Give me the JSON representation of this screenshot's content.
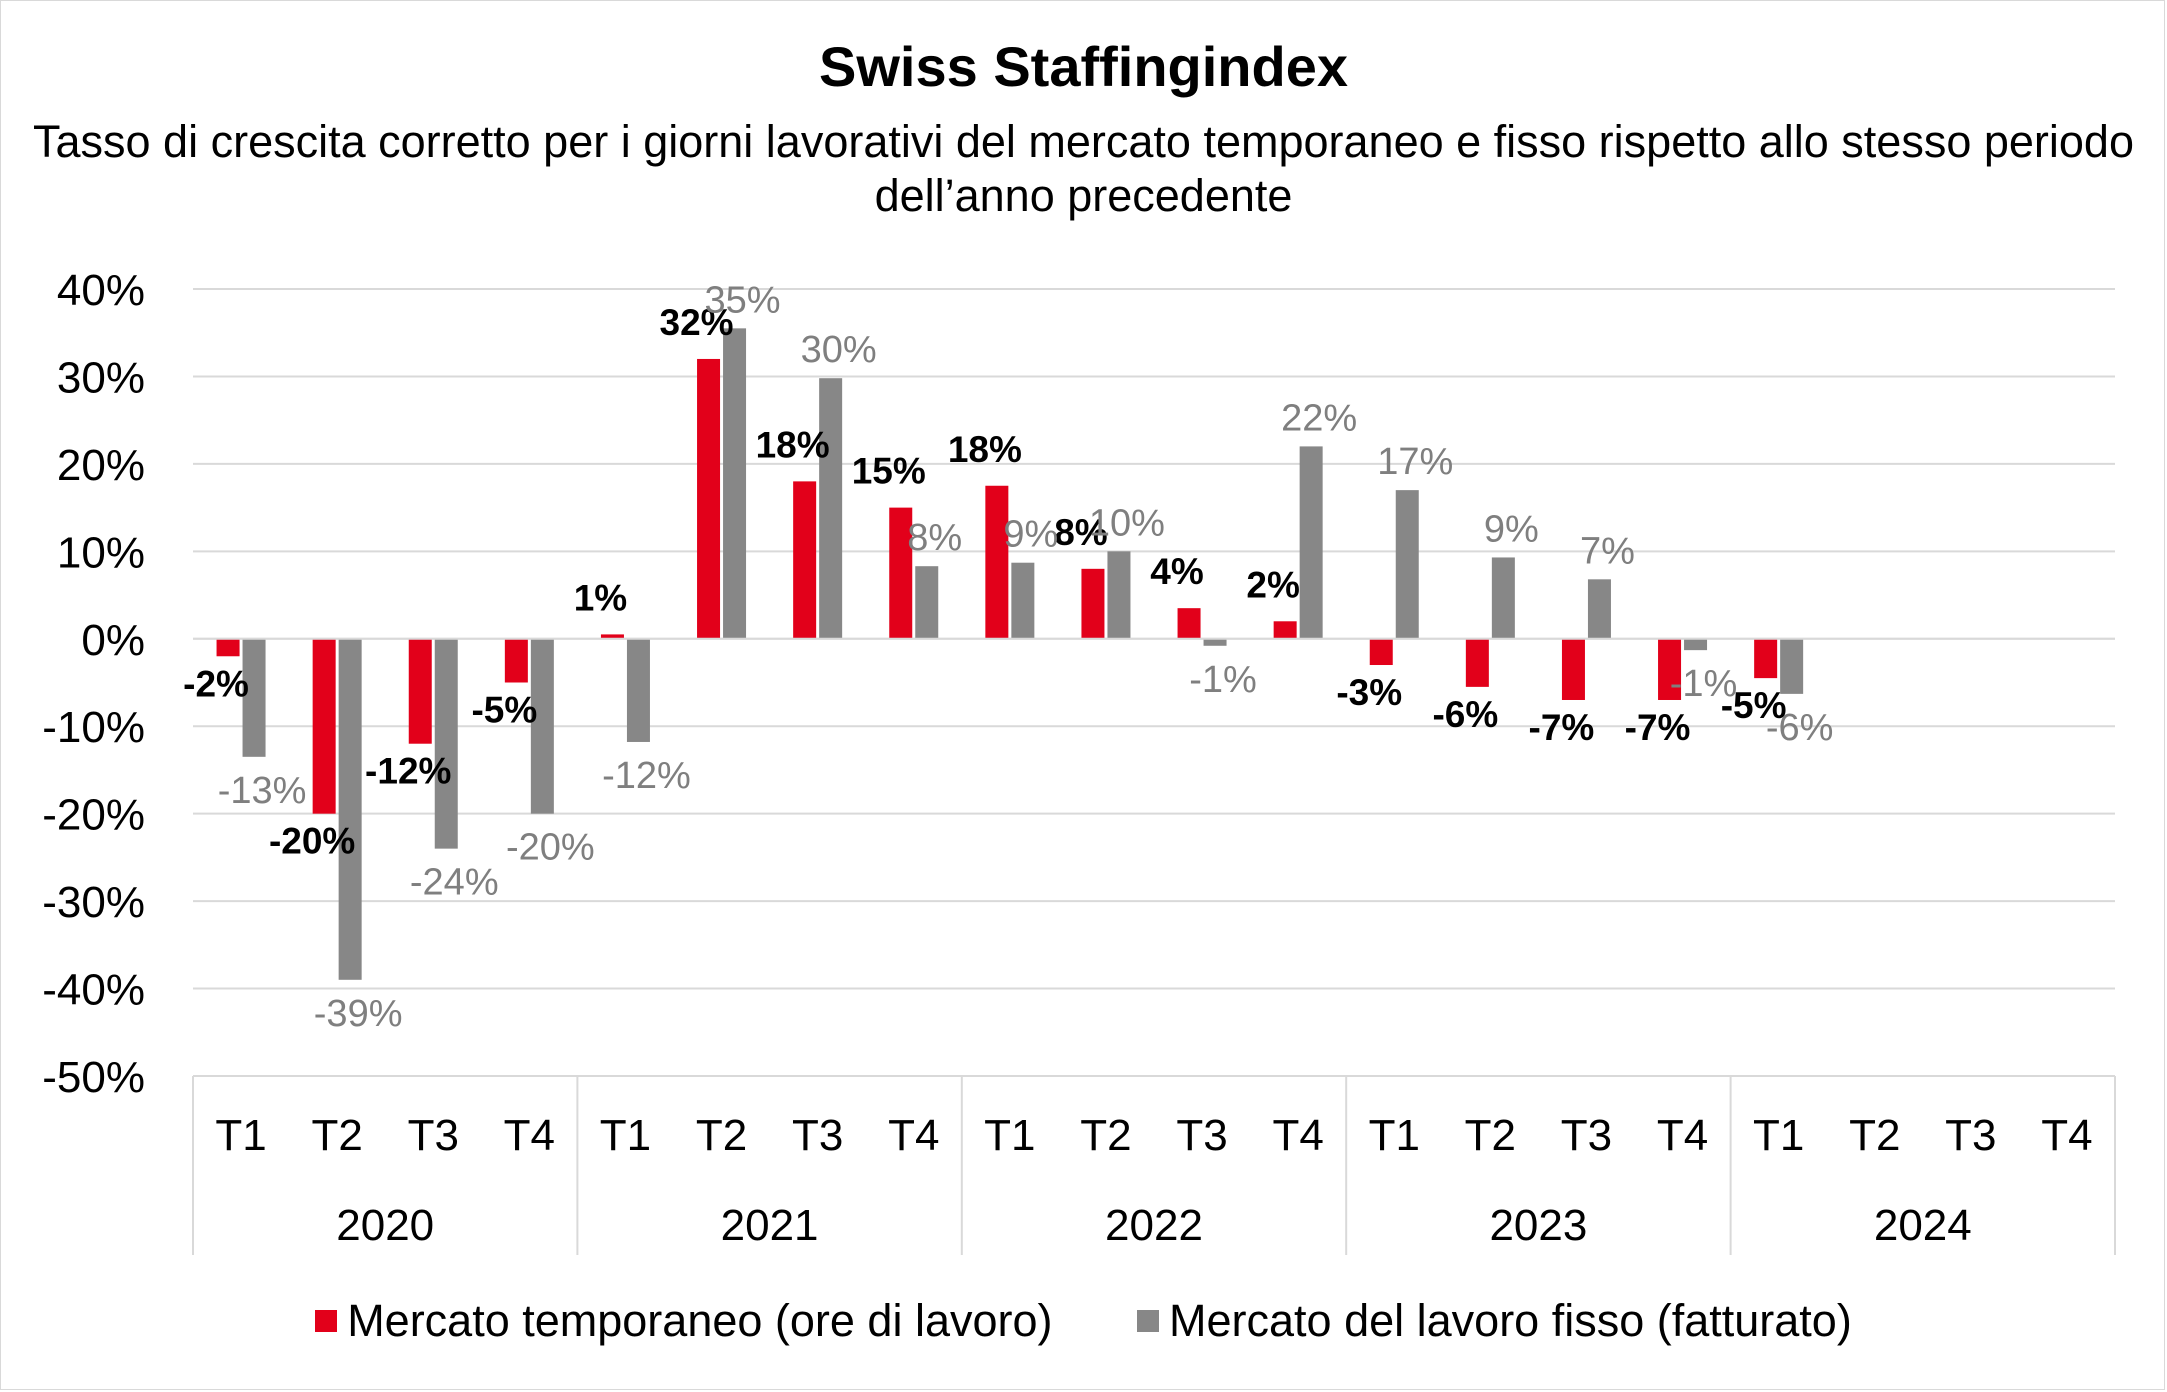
{
  "chart_data": {
    "type": "bar",
    "title": "Swiss Staffingindex",
    "subtitle": "Tasso di crescita corretto per i giorni lavorativi del mercato temporaneo e fisso rispetto allo stesso periodo dell’anno precedente",
    "categories": [
      "T1",
      "T2",
      "T3",
      "T4",
      "T1",
      "T2",
      "T3",
      "T4",
      "T1",
      "T2",
      "T3",
      "T4",
      "T1",
      "T2",
      "T3",
      "T4",
      "T1",
      "T2",
      "T3",
      "T4"
    ],
    "groups": [
      {
        "label": "2020",
        "span": 4
      },
      {
        "label": "2021",
        "span": 4
      },
      {
        "label": "2022",
        "span": 4
      },
      {
        "label": "2023",
        "span": 4
      },
      {
        "label": "2024",
        "span": 4
      }
    ],
    "ylim": [
      -0.5,
      0.4
    ],
    "yticks": [
      "40%",
      "30%",
      "20%",
      "10%",
      "0%",
      "-10%",
      "-20%",
      "-30%",
      "-40%",
      "-50%"
    ],
    "ytick_values": [
      0.4,
      0.3,
      0.2,
      0.1,
      0,
      -0.1,
      -0.2,
      -0.3,
      -0.4,
      -0.5
    ],
    "grid": true,
    "legend_position": "bottom",
    "series": [
      {
        "name": "Mercato temporaneo (ore di lavoro)",
        "color": "#e2001a",
        "values": [
          -0.02,
          -0.2,
          -0.12,
          -0.05,
          0.005,
          0.32,
          0.18,
          0.15,
          0.175,
          0.08,
          0.035,
          0.02,
          -0.03,
          -0.055,
          -0.07,
          -0.07,
          -0.045,
          null,
          null,
          null
        ],
        "labels": [
          "-2%",
          "-20%",
          "-12%",
          "-5%",
          "1%",
          "32%",
          "18%",
          "15%",
          "18%",
          "8%",
          "4%",
          "2%",
          "-3%",
          "-6%",
          "-7%",
          "-7%",
          "-5%",
          "",
          "",
          ""
        ]
      },
      {
        "name": "Mercato del lavoro fisso (fatturato)",
        "color": "#878787",
        "values": [
          -0.135,
          -0.39,
          -0.24,
          -0.2,
          -0.118,
          0.355,
          0.298,
          0.083,
          0.087,
          0.1,
          -0.008,
          0.22,
          0.17,
          0.093,
          0.068,
          -0.013,
          -0.063,
          null,
          null,
          null
        ],
        "labels": [
          "-13%",
          "-39%",
          "-24%",
          "-20%",
          "-12%",
          "35%",
          "30%",
          "8%",
          "9%",
          "10%",
          "-1%",
          "22%",
          "17%",
          "9%",
          "7%",
          "-1%",
          "-6%",
          "",
          "",
          ""
        ]
      }
    ]
  }
}
